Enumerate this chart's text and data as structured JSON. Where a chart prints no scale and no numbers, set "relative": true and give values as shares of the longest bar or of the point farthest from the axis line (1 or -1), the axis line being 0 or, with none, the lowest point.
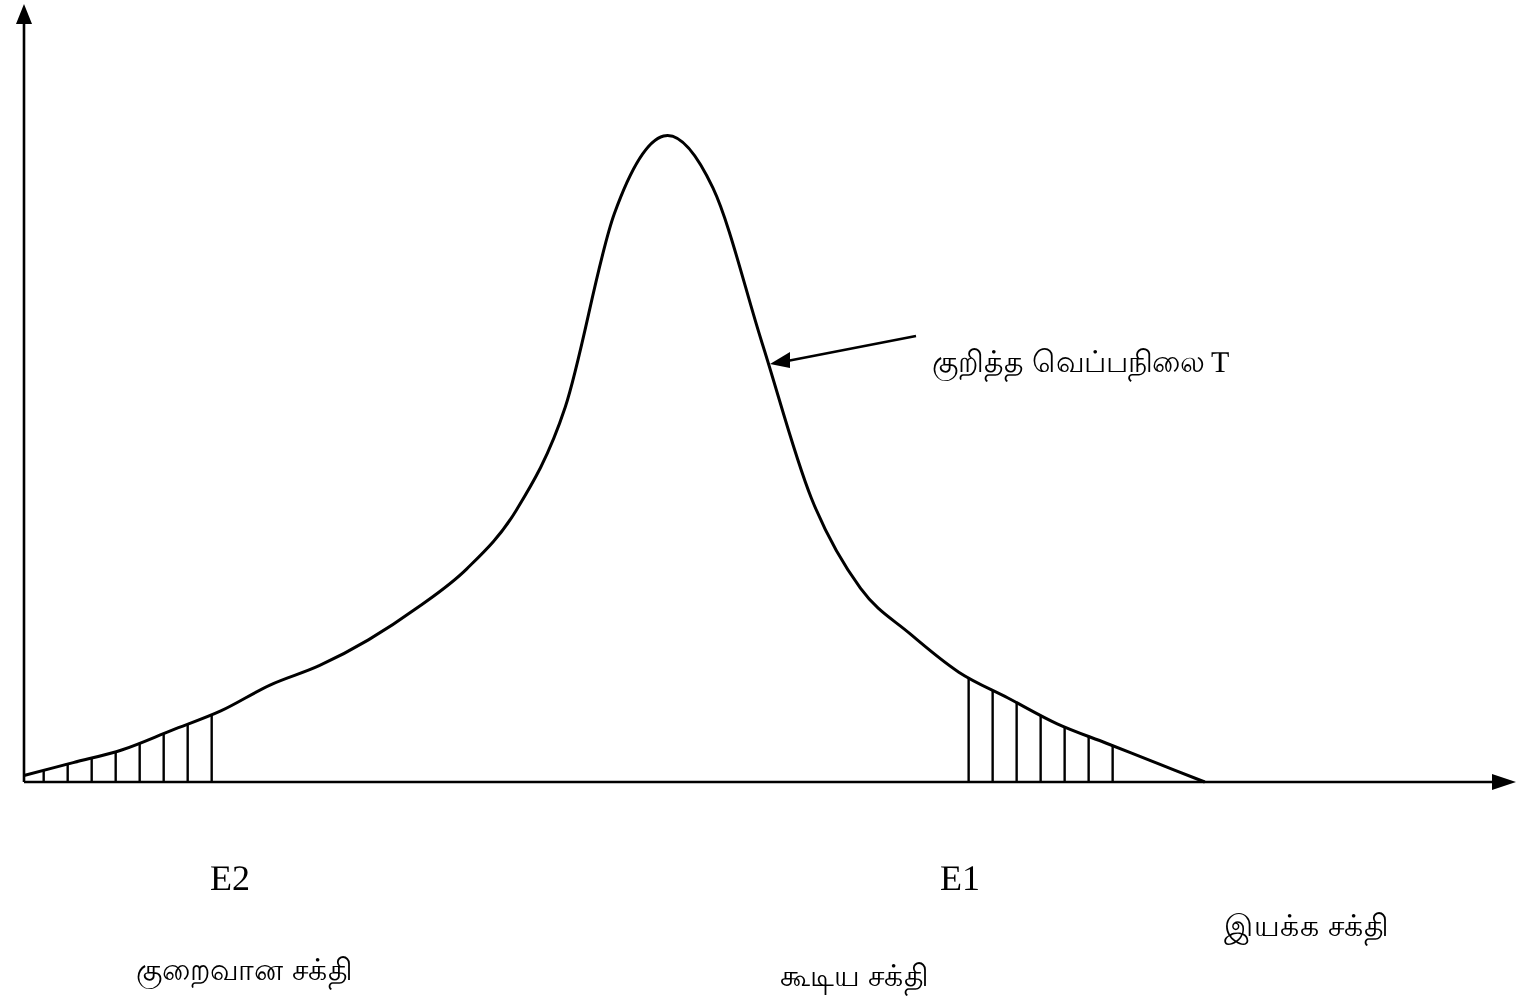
{
  "chart_data": {
    "type": "line",
    "relative": true,
    "categories": [
      null,
      null,
      null,
      null,
      null,
      null,
      null,
      null,
      null,
      null,
      null,
      null,
      null,
      null,
      null,
      null,
      null,
      null,
      null,
      null,
      null,
      null,
      null,
      null,
      null,
      null,
      null,
      null,
      null,
      null,
      null
    ],
    "series": [
      {
        "color": "#000000",
        "values": [
          0.01,
          0.03,
          0.05,
          0.08,
          0.11,
          0.15,
          0.18,
          0.22,
          0.27,
          0.33,
          0.42,
          0.58,
          0.88,
          1.0,
          0.92,
          0.68,
          0.44,
          0.3,
          0.23,
          0.17,
          0.13,
          0.09,
          0.06,
          0.03,
          0,
          null,
          null,
          null,
          null,
          null,
          null
        ]
      }
    ],
    "xlabel": "இயக்க சக்தி",
    "annotations": [
      "குறித்த வெப்பநிலை T",
      "E2",
      "E1",
      "குறைவான சக்தி",
      "கூடிய சக்தி"
    ],
    "marker": "none",
    "line_style": "solid"
  }
}
